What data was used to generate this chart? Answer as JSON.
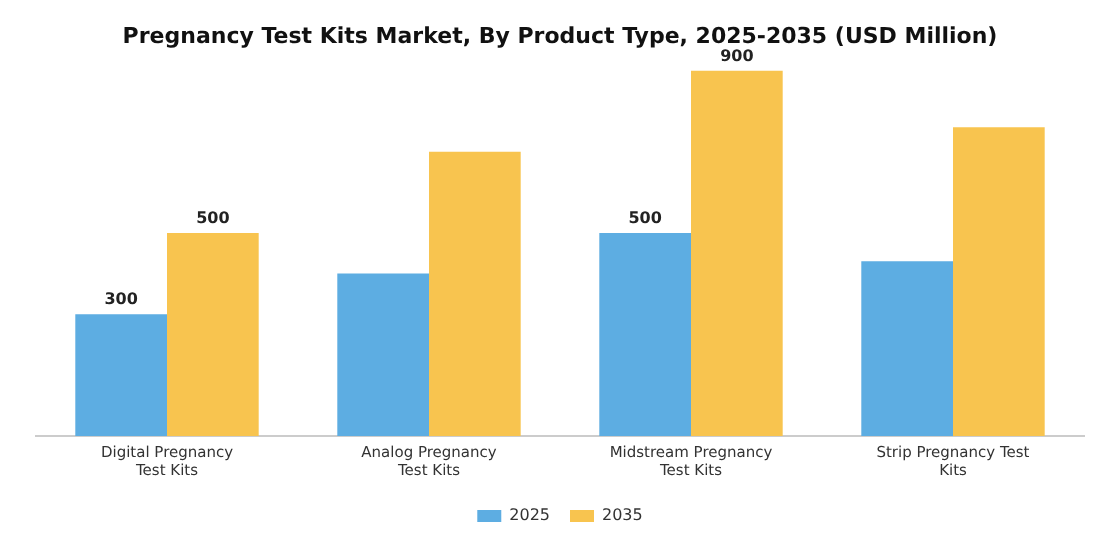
{
  "chart_data": {
    "type": "bar",
    "title": "Pregnancy Test Kits Market, By Product Type, 2025-2035 (USD Million)",
    "categories": [
      "Digital Pregnancy Test Kits",
      "Analog Pregnancy Test Kits",
      "Midstream Pregnancy Test Kits",
      "Strip Pregnancy Test Kits"
    ],
    "series": [
      {
        "name": "2025",
        "color": "#5dade2",
        "values": [
          300,
          400,
          500,
          430
        ],
        "value_labels": [
          "300",
          null,
          "500",
          null
        ]
      },
      {
        "name": "2035",
        "color": "#f8c44f",
        "values": [
          500,
          700,
          900,
          760
        ],
        "value_labels": [
          "500",
          null,
          "900",
          null
        ]
      }
    ],
    "legend": "bottom",
    "grid": false,
    "tick_labels": "x"
  }
}
